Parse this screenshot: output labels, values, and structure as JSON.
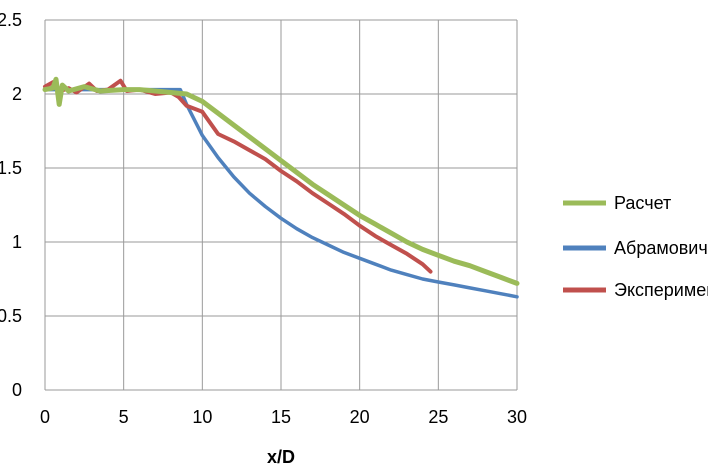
{
  "chart_data": {
    "type": "line",
    "title": "",
    "xlabel": "x/D",
    "ylabel": "",
    "xlim": [
      0,
      30
    ],
    "ylim": [
      0,
      2.5
    ],
    "xticks": [
      0,
      5,
      10,
      15,
      20,
      25,
      30
    ],
    "yticks": [
      0,
      0.5,
      1,
      1.5,
      2,
      2.5
    ],
    "xtick_labels": [
      "0",
      "5",
      "10",
      "15",
      "20",
      "25",
      "30"
    ],
    "ytick_labels": [
      "0",
      "0.5",
      "1",
      "1.5",
      "2",
      "2.5"
    ],
    "grid": true,
    "legend_position": "right",
    "series": [
      {
        "name": "Расчет",
        "color": "#9bbb59",
        "x": [
          0,
          0.5,
          0.7,
          0.9,
          1.1,
          1.5,
          2.5,
          3.5,
          5,
          6,
          7,
          8,
          9,
          10,
          11,
          12,
          13,
          14,
          15,
          16,
          17,
          18,
          19,
          20,
          21,
          22,
          23,
          24,
          25,
          26,
          27,
          28,
          29,
          30
        ],
        "y": [
          2.03,
          2.04,
          2.1,
          1.93,
          2.06,
          2.02,
          2.05,
          2.02,
          2.03,
          2.03,
          2.02,
          2.01,
          2.0,
          1.95,
          1.87,
          1.79,
          1.71,
          1.63,
          1.55,
          1.47,
          1.39,
          1.32,
          1.25,
          1.18,
          1.12,
          1.06,
          1.0,
          0.95,
          0.91,
          0.87,
          0.84,
          0.8,
          0.76,
          0.72
        ]
      },
      {
        "name": "Абрамович",
        "color": "#4f81bd",
        "x": [
          0,
          2,
          4,
          6,
          8,
          8.6,
          9,
          10,
          11,
          12,
          13,
          14,
          15,
          16,
          17,
          18,
          19,
          20,
          21,
          22,
          23,
          24,
          25,
          26,
          27,
          28,
          29,
          30
        ],
        "y": [
          2.03,
          2.03,
          2.03,
          2.03,
          2.03,
          2.03,
          1.93,
          1.72,
          1.57,
          1.44,
          1.33,
          1.24,
          1.16,
          1.09,
          1.03,
          0.98,
          0.93,
          0.89,
          0.85,
          0.81,
          0.78,
          0.75,
          0.73,
          0.71,
          0.69,
          0.67,
          0.65,
          0.63
        ]
      },
      {
        "name": "Эксперимент",
        "color": "#c0504d",
        "x": [
          0,
          0.5,
          1,
          1.5,
          2,
          2.8,
          3.3,
          4,
          4.8,
          5.2,
          6,
          7,
          8,
          8.5,
          9,
          10,
          11,
          12,
          13,
          14,
          15,
          16,
          17,
          18,
          19,
          20,
          21,
          22,
          23,
          24,
          24.5
        ],
        "y": [
          2.05,
          2.08,
          2.02,
          2.04,
          2.01,
          2.07,
          2.02,
          2.03,
          2.09,
          2.02,
          2.03,
          2.0,
          2.01,
          1.98,
          1.92,
          1.88,
          1.73,
          1.68,
          1.62,
          1.56,
          1.48,
          1.41,
          1.33,
          1.26,
          1.19,
          1.11,
          1.04,
          0.98,
          0.92,
          0.85,
          0.8
        ]
      }
    ]
  }
}
